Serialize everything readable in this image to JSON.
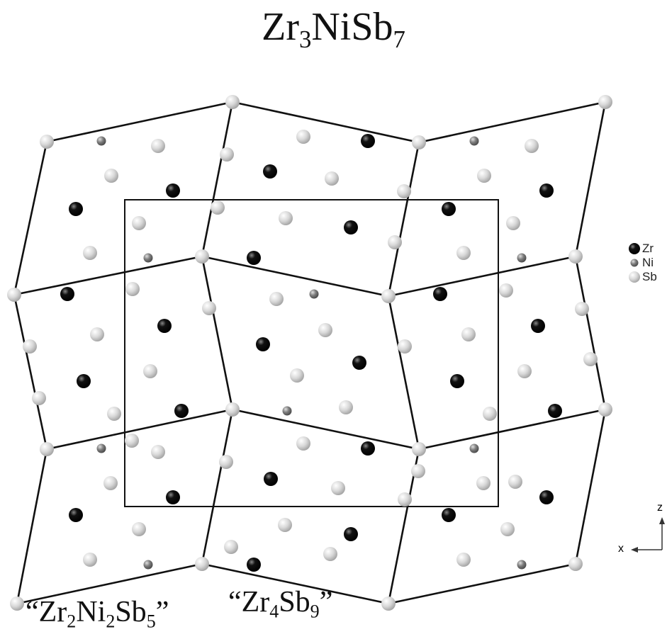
{
  "title": {
    "base1": "Zr",
    "sub1": "3",
    "base2": "NiSb",
    "sub2": "7"
  },
  "labels": {
    "left": {
      "open": "“Zr",
      "sub1": "2",
      "mid": "Ni",
      "sub2": "2",
      "base3": "Sb",
      "sub3": "5",
      "close": "”"
    },
    "right": {
      "open": "“Zr",
      "sub1": "4",
      "mid": "Sb",
      "sub2": "9",
      "close": "”"
    }
  },
  "legend": [
    {
      "label": "Zr",
      "color": "#000000"
    },
    {
      "label": "Ni",
      "color": "#777777"
    },
    {
      "label": "Sb",
      "color": "#d6d6d6"
    }
  ],
  "axes": {
    "vertical": "z",
    "horizontal": "x"
  }
}
